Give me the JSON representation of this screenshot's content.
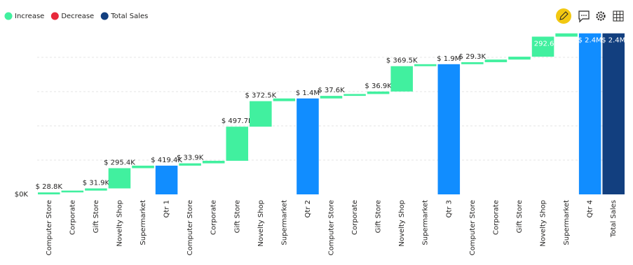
{
  "chart_data": {
    "type": "waterfall",
    "legend": [
      {
        "name": "Increase",
        "color": "#41f09f"
      },
      {
        "name": "Decrease",
        "color": "#e8293b"
      },
      {
        "name": "Total Sales",
        "color": "#123f7f"
      }
    ],
    "subtotal_color": "#118dff",
    "categories": [
      "Computer Store",
      "Corporate",
      "Gift Store",
      "Novelty Shop",
      "Supermarket",
      "Qtr 1",
      "Computer Store",
      "Corporate",
      "Gift Store",
      "Novelty Shop",
      "Supermarket",
      "Qtr 2",
      "Computer Store",
      "Corporate",
      "Gift Store",
      "Novelty Shop",
      "Supermarket",
      "Qtr 3",
      "Computer Store",
      "Corporate",
      "Gift Store",
      "Novelty Shop",
      "Supermarket",
      "Qtr 4",
      "Total Sales"
    ],
    "kinds": [
      "increase",
      "increase",
      "increase",
      "increase",
      "increase",
      "subtotal",
      "increase",
      "increase",
      "increase",
      "increase",
      "increase",
      "subtotal",
      "increase",
      "increase",
      "increase",
      "increase",
      "increase",
      "subtotal",
      "increase",
      "increase",
      "increase",
      "increase",
      "increase",
      "subtotal",
      "total"
    ],
    "values": [
      28800,
      26400,
      31900,
      295400,
      36900,
      419400,
      33900,
      37000,
      497700,
      372500,
      39500,
      1400000,
      37600,
      27000,
      36900,
      369500,
      29000,
      1900000,
      29300,
      38000,
      42000,
      292600,
      48000,
      2350000,
      2350000
    ],
    "value_labels": [
      "$ 28.8K",
      null,
      "$ 31.9K",
      "$ 295.4K",
      null,
      "$ 419.4K",
      "$ 33.9K",
      null,
      "$ 497.7K",
      "$ 372.5K",
      null,
      "$ 1.4M",
      "$ 37.6K",
      null,
      "$ 36.9K",
      "$ 369.5K",
      null,
      "$ 1.9M",
      "$ 29.3K",
      null,
      null,
      "$ 292.6K",
      null,
      "$ 2.4M",
      "$ 2.4M"
    ],
    "ylim": [
      0,
      2500000
    ],
    "yticks": [
      {
        "value": 0,
        "label": "$0K"
      }
    ],
    "grid_values": [
      500000,
      1000000,
      1500000,
      2000000
    ]
  }
}
